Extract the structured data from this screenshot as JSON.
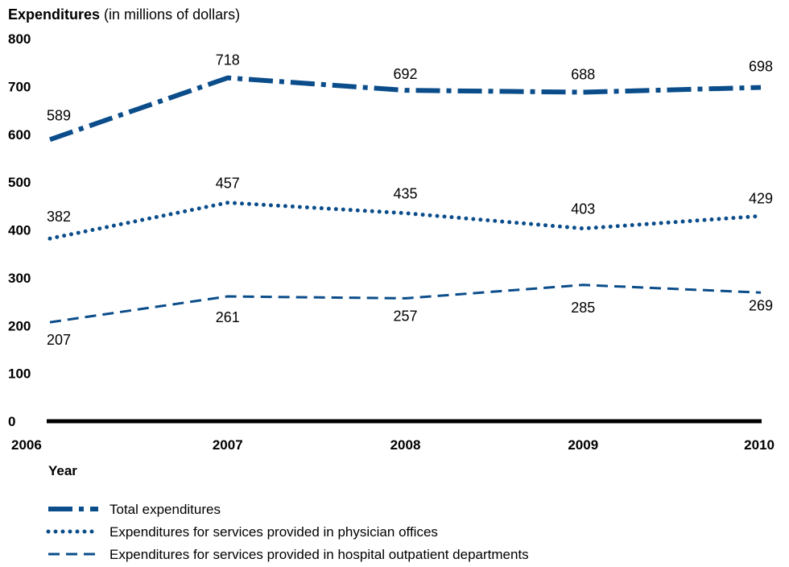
{
  "chart_data": {
    "type": "line",
    "ylabel": {
      "bold": "Expenditures",
      "normal": "(in millions of dollars)"
    },
    "xlabel": "Year",
    "x": [
      "2006",
      "2007",
      "2008",
      "2009",
      "2010"
    ],
    "yticks": [
      "0",
      "100",
      "200",
      "300",
      "400",
      "500",
      "600",
      "700",
      "800"
    ],
    "ylim": [
      0,
      800
    ],
    "grid": false,
    "legend_position": "bottom-left",
    "series": [
      {
        "name": "Total expenditures",
        "values": [
          589,
          718,
          692,
          688,
          698
        ],
        "labels": [
          "589",
          "718",
          "692",
          "688",
          "698"
        ],
        "style": "dashdot",
        "color": "#0b4d8a"
      },
      {
        "name": "Expenditures for services provided in physician offices",
        "values": [
          382,
          457,
          435,
          403,
          429
        ],
        "labels": [
          "382",
          "457",
          "435",
          "403",
          "429"
        ],
        "style": "dotted",
        "color": "#0b4d8a"
      },
      {
        "name": "Expenditures for services provided in hospital outpatient departments",
        "values": [
          207,
          261,
          257,
          285,
          269
        ],
        "labels": [
          "207",
          "261",
          "257",
          "285",
          "269"
        ],
        "style": "dashed",
        "color": "#0b4d8a"
      }
    ]
  }
}
